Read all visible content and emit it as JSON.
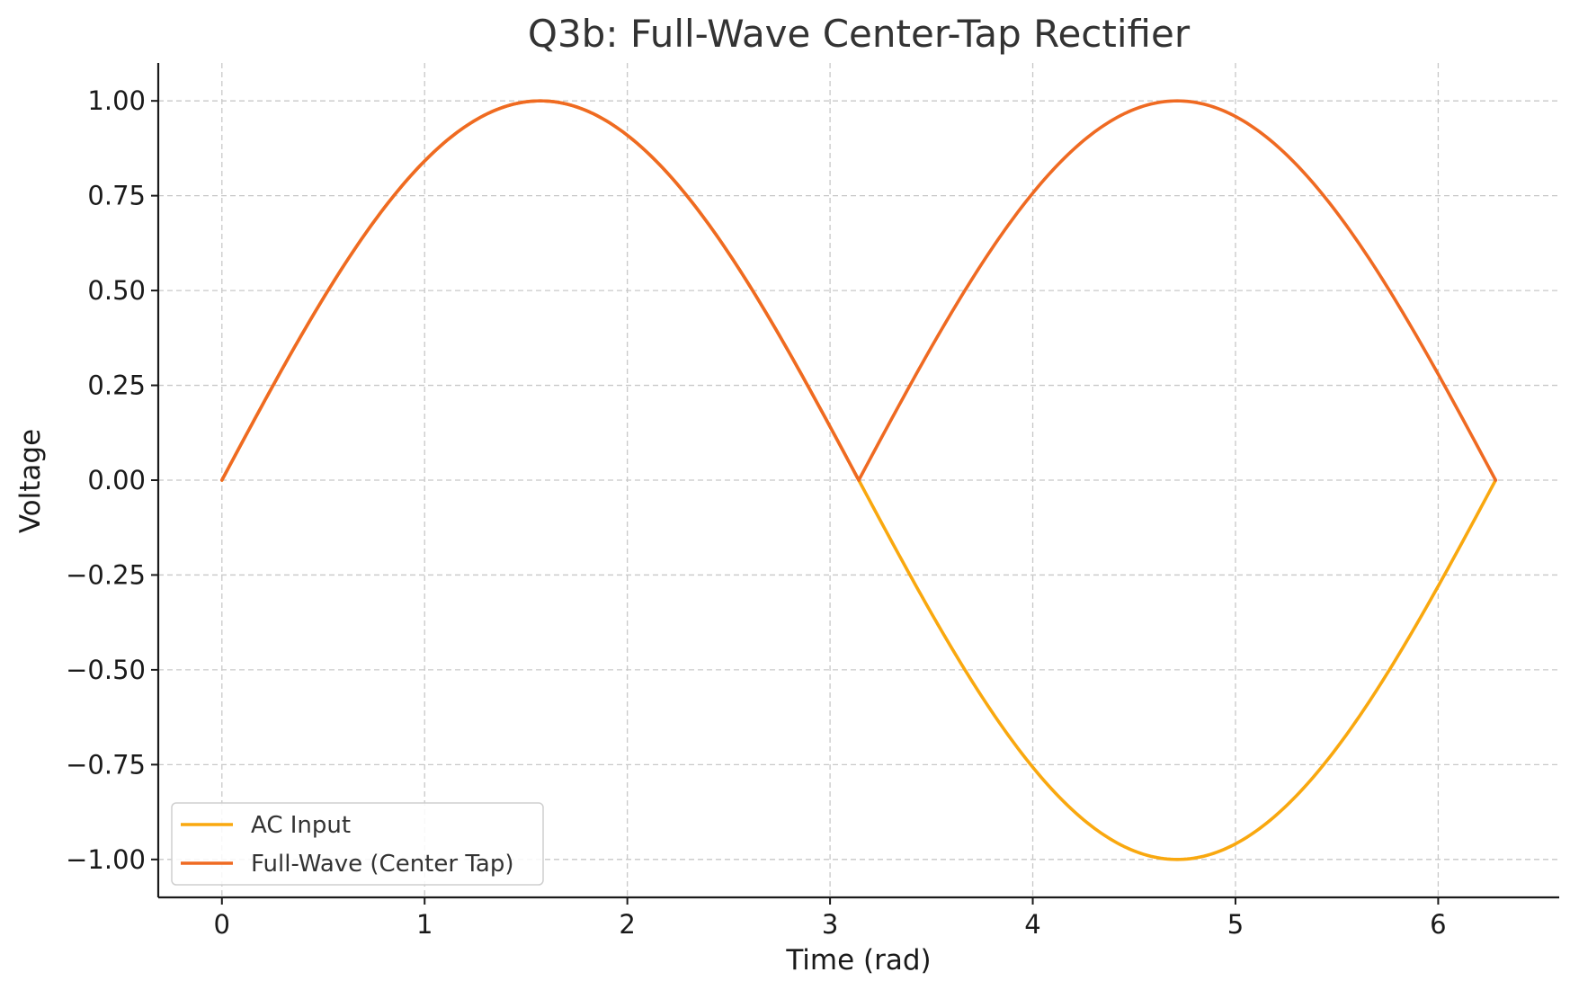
{
  "chart_data": {
    "type": "line",
    "title": "Q3b: Full-Wave Center-Tap Rectifier",
    "xlabel": "Time (rad)",
    "ylabel": "Voltage",
    "xlim": [
      -0.314,
      6.597
    ],
    "ylim": [
      -1.1,
      1.1
    ],
    "xticks": [
      0,
      1,
      2,
      3,
      4,
      5,
      6
    ],
    "xtick_labels": [
      "0",
      "1",
      "2",
      "3",
      "4",
      "5",
      "6"
    ],
    "yticks": [
      1.0,
      0.75,
      0.5,
      0.25,
      0.0,
      -0.25,
      -0.5,
      -0.75,
      -1.0
    ],
    "ytick_labels": [
      "1.00",
      "0.75",
      "0.50",
      "0.25",
      "0.00",
      "−0.25",
      "−0.50",
      "−0.75",
      "−1.00"
    ],
    "grid": true,
    "legend_position": "lower-left",
    "x": [
      0,
      0.3927,
      0.7854,
      1.1781,
      1.5708,
      1.9635,
      2.3562,
      2.7489,
      3.1416,
      3.5343,
      3.927,
      4.3197,
      4.7124,
      5.1051,
      5.4978,
      5.8905,
      6.2832
    ],
    "series": [
      {
        "name": "AC Input",
        "color": "#f9a80f",
        "values": [
          0,
          0.3827,
          0.7071,
          0.9239,
          1.0,
          0.9239,
          0.7071,
          0.3827,
          0,
          -0.3827,
          -0.7071,
          -0.9239,
          -1.0,
          -0.9239,
          -0.7071,
          -0.3827,
          0
        ]
      },
      {
        "name": "Full-Wave (Center Tap)",
        "color": "#ef6a22",
        "values": [
          0,
          0.3827,
          0.7071,
          0.9239,
          1.0,
          0.9239,
          0.7071,
          0.3827,
          0,
          0.3827,
          0.7071,
          0.9239,
          1.0,
          0.9239,
          0.7071,
          0.3827,
          0
        ]
      }
    ]
  }
}
